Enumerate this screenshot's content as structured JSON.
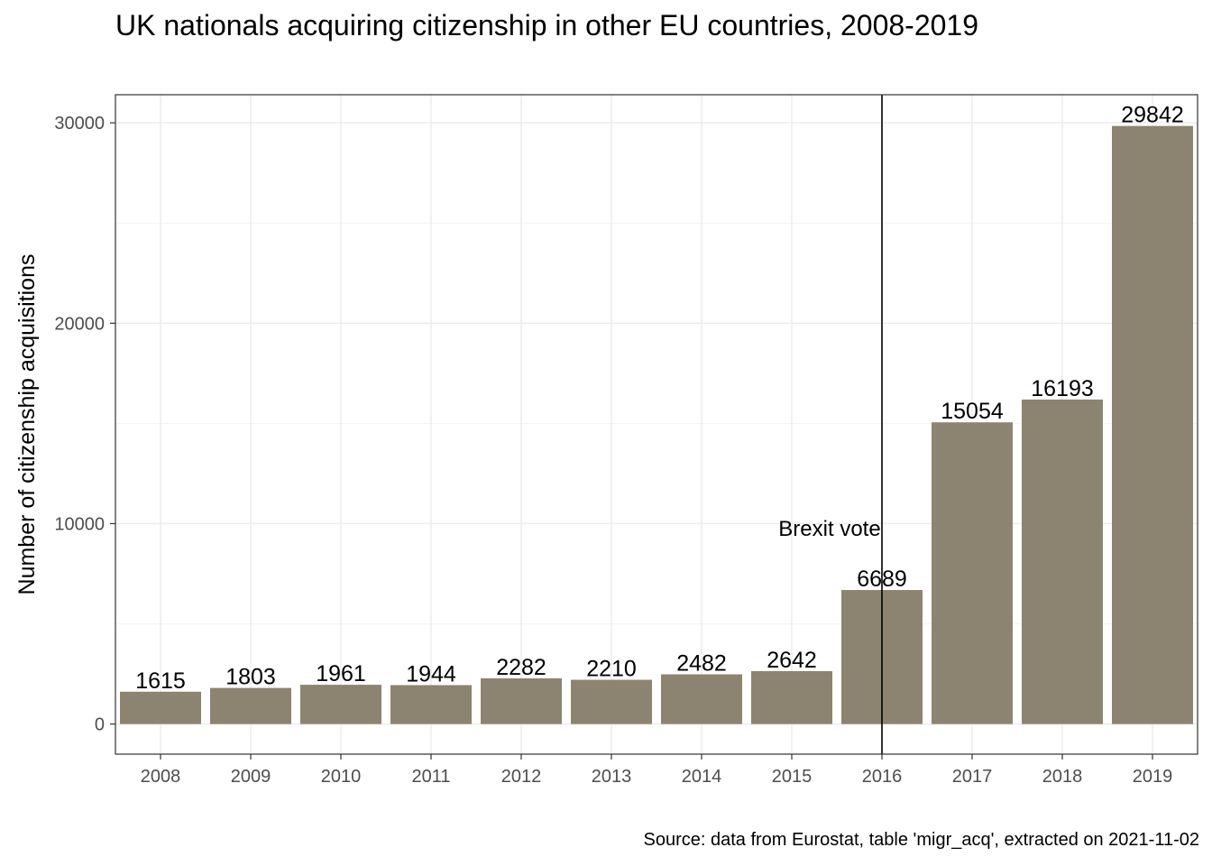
{
  "chart_data": {
    "type": "bar",
    "title": "UK nationals acquiring citizenship in other EU countries, 2008-2019",
    "caption": "Source: data from Eurostat, table 'migr_acq', extracted on 2021-11-02",
    "xlabel": "",
    "ylabel": "Number of citizenship acquisitions",
    "categories": [
      "2008",
      "2009",
      "2010",
      "2011",
      "2012",
      "2013",
      "2014",
      "2015",
      "2016",
      "2017",
      "2018",
      "2019"
    ],
    "values": [
      1615,
      1803,
      1961,
      1944,
      2282,
      2210,
      2482,
      2642,
      6689,
      15054,
      16193,
      29842
    ],
    "ylim": [
      -1500,
      31400
    ],
    "yticks": [
      0,
      10000,
      20000,
      30000
    ],
    "ytick_labels": [
      "0",
      "10000",
      "20000",
      "30000"
    ],
    "grid": true,
    "bar_color": "#8c8470",
    "annotation": {
      "text": "Brexit vote",
      "x": "2016",
      "y": 9800
    }
  }
}
